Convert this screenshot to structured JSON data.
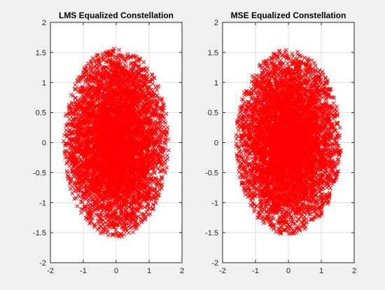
{
  "chart_data": [
    {
      "type": "scatter",
      "title": "LMS Equalized Constellation",
      "xlabel": "",
      "ylabel": "",
      "xlim": [
        -2,
        2
      ],
      "ylim": [
        -2,
        2
      ],
      "xticks": [
        -2,
        -1,
        0,
        1,
        2
      ],
      "yticks": [
        -2,
        -1.5,
        -1,
        -0.5,
        0,
        0.5,
        1,
        1.5,
        2
      ],
      "grid": true,
      "marker": "x",
      "color": "#ff0000",
      "distribution": {
        "shape": "elliptical cloud",
        "center": [
          0,
          0
        ],
        "x_extent": [
          -1.6,
          1.6
        ],
        "y_extent": [
          -1.6,
          1.55
        ],
        "approx_points": 6000
      }
    },
    {
      "type": "scatter",
      "title": "MSE Equalized Constellation",
      "xlabel": "",
      "ylabel": "",
      "xlim": [
        -2,
        2
      ],
      "ylim": [
        -2,
        2
      ],
      "xticks": [
        -2,
        -1,
        0,
        1,
        2
      ],
      "yticks": [
        -2,
        -1.5,
        -1,
        -0.5,
        0,
        0.5,
        1,
        1.5,
        2
      ],
      "grid": true,
      "marker": "x",
      "color": "#ff0000",
      "distribution": {
        "shape": "elliptical cloud",
        "center": [
          0,
          0
        ],
        "x_extent": [
          -1.6,
          1.6
        ],
        "y_extent": [
          -1.55,
          1.55
        ],
        "approx_points": 6000
      }
    }
  ]
}
